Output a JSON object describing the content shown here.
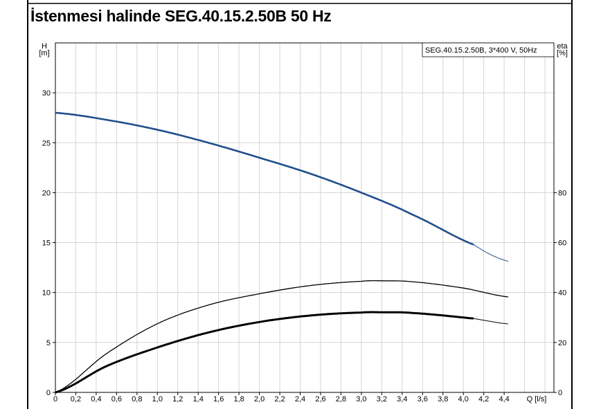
{
  "page_title": "İstenmesi halinde SEG.40.15.2.50B  50 Hz",
  "chart_data": {
    "type": "line",
    "legend_box": "SEG.40.15.2.50B, 3*400 V, 50Hz",
    "legend_placement": "top-right",
    "xlabel": "Q [l/s]",
    "ylabel_left": [
      "H",
      "[m]"
    ],
    "ylabel_right": [
      "eta",
      "[%]"
    ],
    "xlim": [
      0,
      4.89
    ],
    "ylim_left": [
      0,
      35
    ],
    "ylim_right": [
      0,
      140
    ],
    "x_ticks": [
      "0",
      "0,2",
      "0,4",
      "0,6",
      "0,8",
      "1,0",
      "1,2",
      "1,4",
      "1,6",
      "1,8",
      "2,0",
      "2,2",
      "2,4",
      "2,6",
      "2,8",
      "3,0",
      "3,2",
      "3,4",
      "3,6",
      "3,8",
      "4,0",
      "4,2",
      "4,4"
    ],
    "y_ticks_left": [
      "0",
      "5",
      "10",
      "15",
      "20",
      "25",
      "30"
    ],
    "y_ticks_right": [
      "0",
      "20",
      "40",
      "60",
      "80"
    ],
    "grid": true,
    "series": [
      {
        "name": "H",
        "axis": "left",
        "color": "#1f4e8c",
        "thick_until": 4.1,
        "x": [
          0,
          0.5,
          1.0,
          1.5,
          2.0,
          2.5,
          3.0,
          3.5,
          4.1,
          4.45
        ],
        "y": [
          28,
          27.3,
          26.3,
          25.0,
          23.5,
          21.9,
          20.0,
          17.8,
          14.8,
          13.1
        ]
      },
      {
        "name": "eta (upper)",
        "axis": "right",
        "color": "#000000",
        "thick_until": 0,
        "x": [
          0,
          0.5,
          1.0,
          1.5,
          2.0,
          2.5,
          3.0,
          3.2,
          3.5,
          4.0,
          4.45
        ],
        "y": [
          0,
          15.5,
          27.5,
          35.0,
          39.5,
          42.8,
          44.5,
          44.7,
          44.3,
          41.8,
          38.2
        ]
      },
      {
        "name": "eta (lower)",
        "axis": "right",
        "color": "#000000",
        "thick_until": 4.1,
        "x": [
          0,
          0.5,
          1.0,
          1.5,
          2.0,
          2.5,
          3.0,
          3.2,
          3.5,
          4.1,
          4.45
        ],
        "y": [
          0,
          10.5,
          18.0,
          24.0,
          28.2,
          30.8,
          32.0,
          32.1,
          31.8,
          29.6,
          27.4
        ]
      }
    ]
  }
}
